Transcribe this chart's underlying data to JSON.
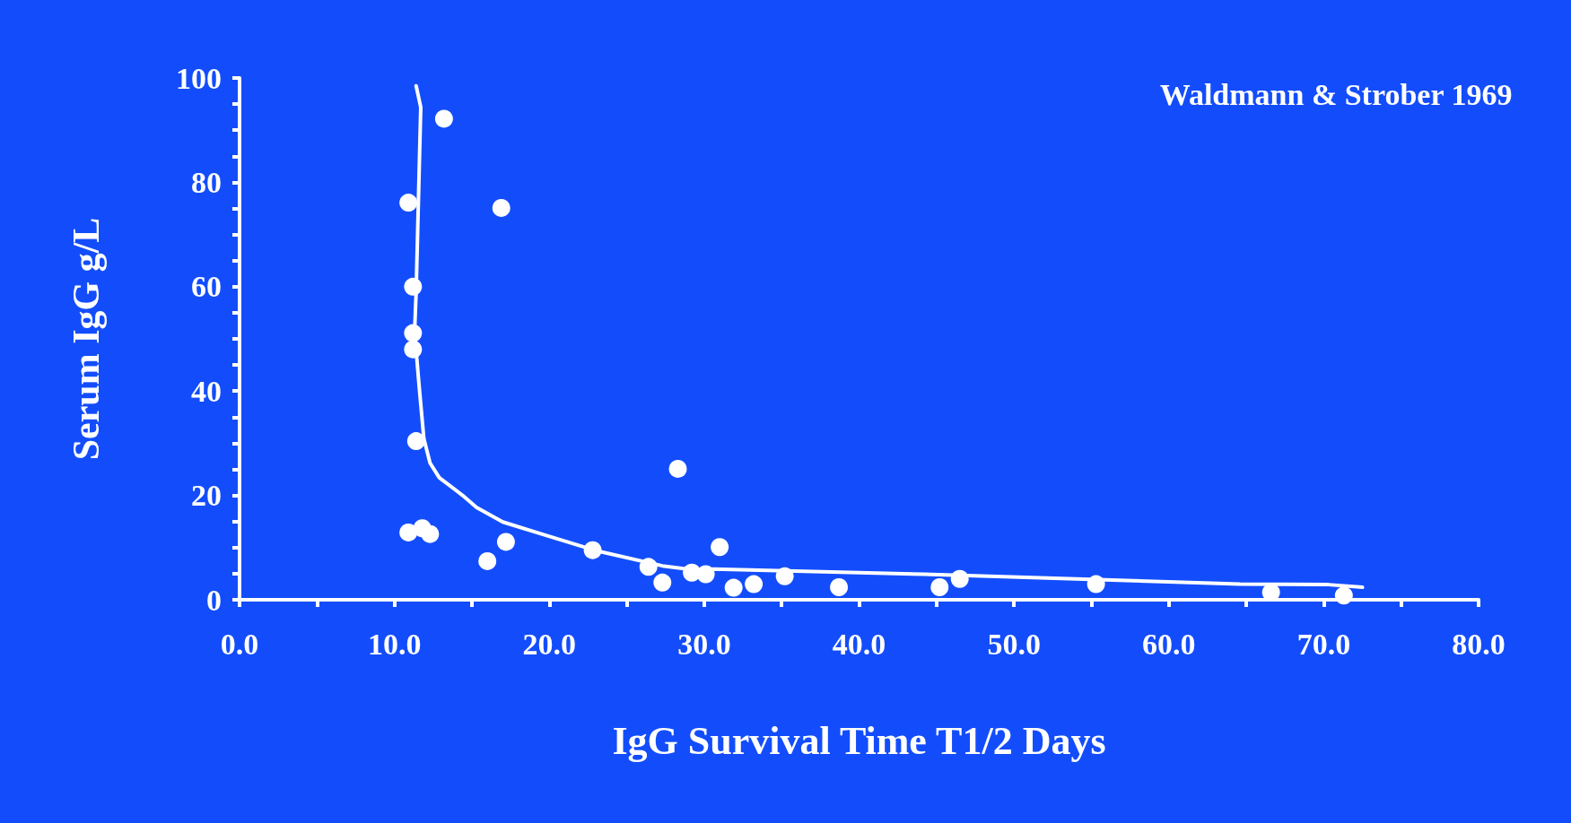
{
  "chart_data": {
    "type": "scatter",
    "xlabel": "IgG Survival Time T1/2 Days",
    "ylabel": "Serum IgG g/L",
    "annotations": [
      "Waldmann & Strober 1969"
    ],
    "xlim": [
      0,
      80
    ],
    "ylim": [
      0,
      100
    ],
    "xticks": [
      {
        "value": 0,
        "label": "0.0"
      },
      {
        "value": 5,
        "label": null
      },
      {
        "value": 10,
        "label": "10.0"
      },
      {
        "value": 15,
        "label": null
      },
      {
        "value": 20,
        "label": "20.0"
      },
      {
        "value": 25,
        "label": null
      },
      {
        "value": 30,
        "label": "30.0"
      },
      {
        "value": 35,
        "label": null
      },
      {
        "value": 40,
        "label": "40.0"
      },
      {
        "value": 45,
        "label": null
      },
      {
        "value": 50,
        "label": "50.0"
      },
      {
        "value": 55,
        "label": null
      },
      {
        "value": 60,
        "label": "60.0"
      },
      {
        "value": 65,
        "label": null
      },
      {
        "value": 70,
        "label": "70.0"
      },
      {
        "value": 75,
        "label": null
      },
      {
        "value": 80,
        "label": "80.0"
      }
    ],
    "yticks": [
      0,
      {
        "value": 5,
        "label": null
      },
      {
        "value": 10,
        "label": null
      },
      {
        "value": 15,
        "label": null
      },
      20,
      {
        "value": 25,
        "label": null
      },
      {
        "value": 30,
        "label": null
      },
      {
        "value": 35,
        "label": null
      },
      40,
      {
        "value": 45,
        "label": null
      },
      {
        "value": 50,
        "label": null
      },
      {
        "value": 55,
        "label": null
      },
      60,
      {
        "value": 65,
        "label": null
      },
      {
        "value": 70,
        "label": null
      },
      {
        "value": 75,
        "label": null
      },
      80,
      {
        "value": 85,
        "label": null
      },
      {
        "value": 90,
        "label": null
      },
      {
        "value": 95,
        "label": null
      },
      100
    ],
    "grid": false,
    "marker": "circle",
    "series": [
      {
        "color": "#ffffff",
        "x": [
          13.2,
          10.9,
          16.9,
          11.2,
          11.2,
          11.2,
          11.4,
          10.9,
          11.8,
          12.3,
          16.0,
          17.2,
          28.3,
          22.8,
          26.4,
          27.3,
          29.2,
          30.1,
          31.0,
          31.9,
          33.2,
          35.2,
          38.7,
          45.2,
          46.5,
          55.3,
          66.6,
          71.3
        ],
        "values": [
          92.2,
          76.1,
          75.1,
          60.0,
          51.1,
          48.0,
          30.4,
          12.9,
          13.7,
          12.6,
          7.4,
          11.1,
          25.1,
          9.5,
          6.3,
          3.3,
          5.2,
          4.9,
          10.1,
          2.3,
          3.0,
          4.5,
          2.4,
          2.4,
          4.0,
          3.0,
          1.4,
          0.8
        ]
      },
      {
        "type": "line",
        "color": "#ffffff",
        "marker": "none",
        "line_style": "solid",
        "x": [
          11.4,
          11.7,
          11.4,
          11.3,
          11.6,
          11.9,
          12.3,
          12.9,
          14.4,
          15.3,
          17.0,
          19.5,
          22.9,
          27.3,
          29.6,
          30.6,
          44.2,
          64.6,
          70.3,
          72.5
        ],
        "values": [
          98.5,
          94.4,
          58.8,
          51.3,
          40.8,
          30.9,
          26.2,
          23.4,
          20.0,
          17.7,
          14.9,
          12.6,
          9.5,
          6.5,
          5.6,
          5.9,
          4.9,
          3.0,
          2.9,
          2.4
        ]
      }
    ]
  }
}
